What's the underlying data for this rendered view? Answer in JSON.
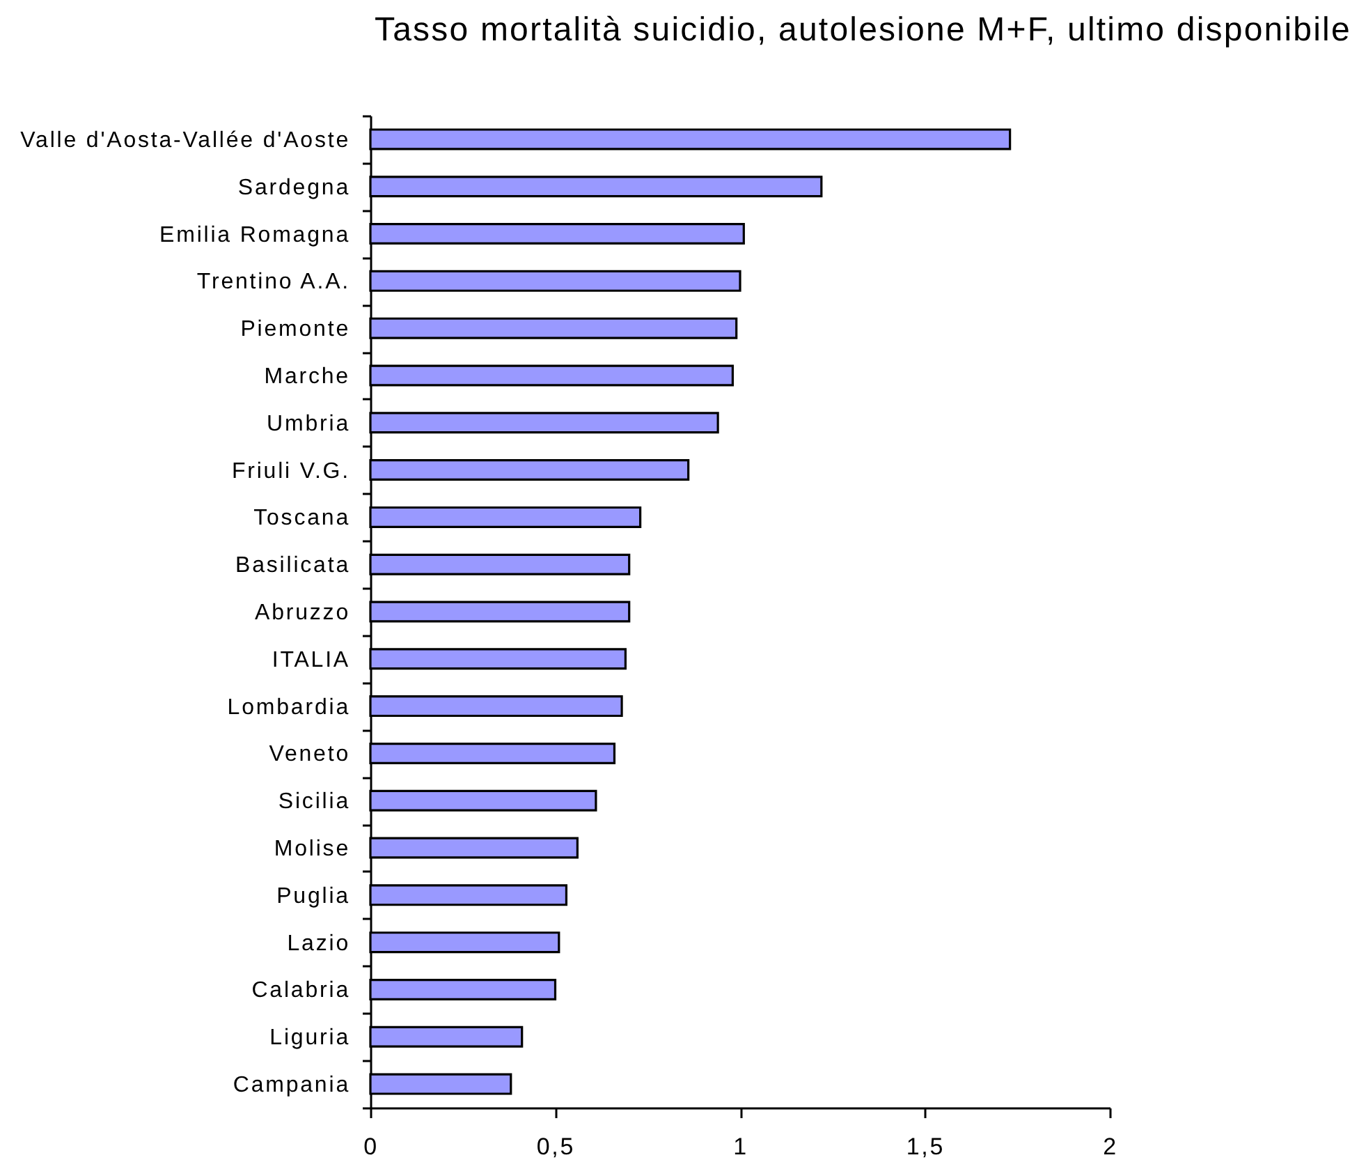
{
  "chart_data": {
    "type": "bar",
    "orientation": "horizontal",
    "title": "Tasso mortalità suicidio, autolesione M+F, ultimo disponibile",
    "categories": [
      "Valle d'Aosta-Vallée d'Aoste",
      "Sardegna",
      "Emilia Romagna",
      "Trentino A.A.",
      "Piemonte",
      "Marche",
      "Umbria",
      "Friuli V.G.",
      "Toscana",
      "Basilicata",
      "Abruzzo",
      "ITALIA",
      "Lombardia",
      "Veneto",
      "Sicilia",
      "Molise",
      "Puglia",
      "Lazio",
      "Calabria",
      "Liguria",
      "Campania"
    ],
    "values": [
      1.73,
      1.22,
      1.01,
      1.0,
      0.99,
      0.98,
      0.94,
      0.86,
      0.73,
      0.7,
      0.7,
      0.69,
      0.68,
      0.66,
      0.61,
      0.56,
      0.53,
      0.51,
      0.5,
      0.41,
      0.38
    ],
    "color": "#9999ff",
    "xlim": [
      0,
      2
    ],
    "xticks": [
      0,
      {
        "value": 0.5,
        "label": "0,5"
      },
      1,
      {
        "value": 1.5,
        "label": "1,5"
      },
      2
    ]
  }
}
